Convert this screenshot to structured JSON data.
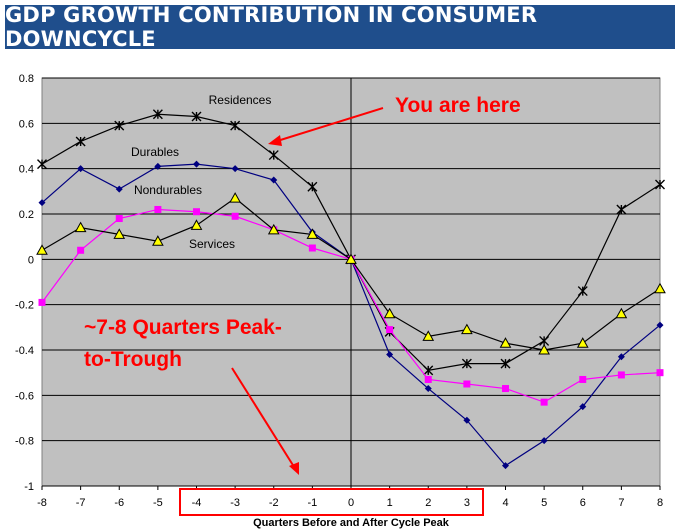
{
  "header": {
    "title": "GDP GROWTH CONTRIBUTION IN CONSUMER DOWNCYCLE"
  },
  "chart_data": {
    "type": "line",
    "title": "GDP GROWTH CONTRIBUTION IN CONSUMER DOWNCYCLE",
    "xlabel": "Quarters Before and After Cycle Peak",
    "ylabel": "",
    "x": [
      -8,
      -7,
      -6,
      -5,
      -4,
      -3,
      -2,
      -1,
      0,
      1,
      2,
      3,
      4,
      5,
      6,
      7,
      8
    ],
    "xlim": [
      -8,
      8
    ],
    "ylim": [
      -1,
      0.8
    ],
    "yticks": [
      0.8,
      0.6,
      0.4,
      0.2,
      0,
      -0.2,
      -0.4,
      -0.6,
      -0.8,
      -1
    ],
    "xticks": [
      -8,
      -7,
      -6,
      -5,
      -4,
      -3,
      -2,
      -1,
      0,
      1,
      2,
      3,
      4,
      5,
      6,
      7,
      8
    ],
    "ytick_labels": [
      "0.8",
      "0.6",
      "0.4",
      "0.2",
      "0",
      "-0.2",
      "-0.4",
      "-0.6",
      "-0.8",
      "-1"
    ],
    "xtick_labels": [
      "-8",
      "-7",
      "-6",
      "-5",
      "-4",
      "-3",
      "-2",
      "-1",
      "0",
      "1",
      "2",
      "3",
      "4",
      "5",
      "6",
      "7",
      "8"
    ],
    "grid": true,
    "series": [
      {
        "name": "Residences",
        "color": "#000000",
        "marker": "star",
        "values": [
          0.42,
          0.52,
          0.59,
          0.64,
          0.63,
          0.59,
          0.46,
          0.32,
          0.0,
          -0.32,
          -0.49,
          -0.46,
          -0.46,
          -0.36,
          -0.14,
          0.22,
          0.33
        ]
      },
      {
        "name": "Durables",
        "color": "#000080",
        "marker": "diamond",
        "values": [
          0.25,
          0.4,
          0.31,
          0.41,
          0.42,
          0.4,
          0.35,
          0.12,
          0.0,
          -0.42,
          -0.57,
          -0.71,
          -0.91,
          -0.8,
          -0.65,
          -0.43,
          -0.29
        ]
      },
      {
        "name": "Nondurables",
        "color": "#ff00ff",
        "marker": "square",
        "values": [
          -0.19,
          0.04,
          0.18,
          0.22,
          0.21,
          0.19,
          0.13,
          0.05,
          0.0,
          -0.31,
          -0.53,
          -0.55,
          -0.57,
          -0.63,
          -0.53,
          -0.51,
          -0.5
        ]
      },
      {
        "name": "Services",
        "color": "#000000",
        "marker": "triangle",
        "values": [
          0.04,
          0.14,
          0.11,
          0.08,
          0.15,
          0.27,
          0.13,
          0.11,
          0.0,
          -0.24,
          -0.34,
          -0.31,
          -0.37,
          -0.4,
          -0.37,
          -0.24,
          -0.13
        ]
      }
    ],
    "annotations": {
      "residences_label": "Residences",
      "durables_label": "Durables",
      "nondurables_label": "Nondurables",
      "services_label": "Services",
      "you_are_here": "You are here",
      "peak_to_trough_line1": "~7-8 Quarters Peak-",
      "peak_to_trough_line2": "to-Trough",
      "highlighted_quarters": [
        -4,
        -3,
        -2,
        -1,
        0,
        1,
        2,
        3
      ]
    },
    "colors": {
      "plot_background": "#c0c0c0",
      "annotation_red": "#ff0000",
      "marker_fill_services": "#ffff00"
    }
  }
}
